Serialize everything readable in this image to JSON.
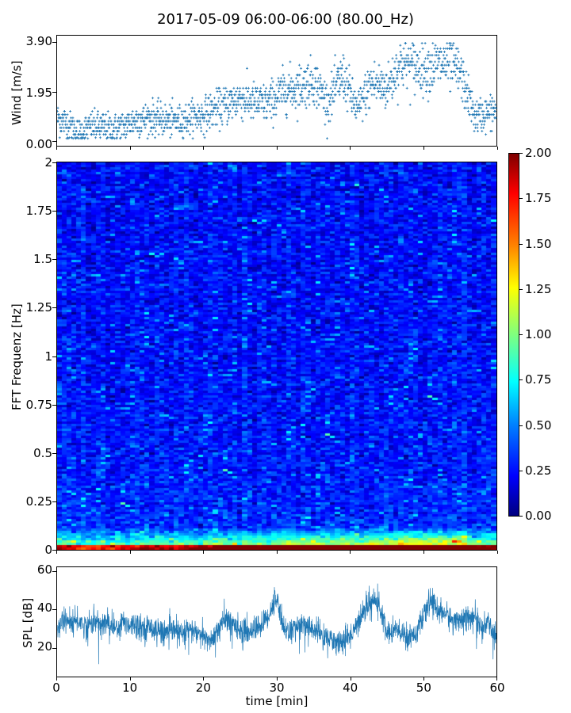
{
  "title": "2017-05-09 06:00-06:00 (80.00_Hz)",
  "chart_data": [
    {
      "type": "scatter",
      "panel": "wind",
      "ylabel": "Wind [m/s]",
      "yticks": [
        "0.00",
        "1.95",
        "3.90"
      ],
      "ylim": [
        0,
        3.9
      ],
      "xlim": [
        0,
        60
      ],
      "color": "#1f77b4",
      "trend": {
        "x": [
          0,
          2,
          3,
          5,
          7,
          9,
          11,
          13,
          15,
          17,
          19,
          20,
          21,
          23,
          25,
          27,
          29,
          31,
          33,
          35,
          37,
          39,
          41,
          43,
          45,
          47,
          49,
          51,
          53,
          55,
          57,
          58,
          60
        ],
        "y": [
          0.9,
          0.55,
          0.35,
          0.6,
          0.5,
          0.55,
          0.85,
          0.9,
          0.8,
          0.8,
          1.0,
          1.0,
          1.2,
          1.4,
          1.7,
          1.5,
          1.5,
          2.0,
          2.1,
          2.4,
          1.5,
          2.6,
          1.2,
          2.3,
          2.1,
          3.1,
          2.9,
          2.9,
          3.1,
          2.7,
          1.0,
          1.0,
          1.2
        ]
      }
    },
    {
      "type": "heatmap",
      "panel": "spectrogram",
      "ylabel": "FFT Frequenz [Hz]",
      "yticks": [
        "0",
        "0.25",
        "0.5",
        "0.75",
        "1",
        "1.25",
        "1.5",
        "1.75",
        "2"
      ],
      "ylim": [
        0,
        2
      ],
      "xlim": [
        0,
        60
      ],
      "colormap": "jet",
      "clim": [
        0,
        2
      ],
      "colorbar_ticks": [
        "0.00",
        "0.25",
        "0.50",
        "0.75",
        "1.00",
        "1.25",
        "1.50",
        "1.75",
        "2.00"
      ]
    },
    {
      "type": "line",
      "panel": "spl",
      "ylabel": "SPL [dB]",
      "xlabel": "time [min]",
      "yticks": [
        "20",
        "40",
        "60"
      ],
      "xticks": [
        "0",
        "10",
        "20",
        "30",
        "40",
        "50",
        "60"
      ],
      "ylim": [
        5,
        62
      ],
      "xlim": [
        0,
        60
      ],
      "color": "#1f77b4",
      "series": [
        {
          "x": [
            0,
            1,
            2,
            3,
            4,
            5,
            6,
            7,
            8,
            9,
            10,
            11,
            12,
            13,
            14,
            15,
            16,
            17,
            18,
            19,
            20,
            21,
            22,
            23,
            24,
            25,
            26,
            27,
            28,
            29,
            30,
            31,
            32,
            33,
            34,
            35,
            36,
            37,
            38,
            39,
            40,
            41,
            42,
            43,
            44,
            45,
            46,
            47,
            48,
            49,
            50,
            51,
            52,
            53,
            54,
            55,
            56,
            57,
            58,
            59,
            60
          ],
          "y": [
            30,
            35,
            33,
            34,
            31,
            34,
            32,
            33,
            30,
            34,
            32,
            33,
            30,
            31,
            29,
            28,
            29,
            27,
            30,
            28,
            25,
            24,
            30,
            35,
            33,
            30,
            28,
            30,
            32,
            38,
            46,
            30,
            28,
            33,
            31,
            30,
            27,
            25,
            24,
            23,
            26,
            33,
            40,
            46,
            42,
            28,
            30,
            27,
            26,
            28,
            35,
            45,
            40,
            38,
            34,
            36,
            35,
            37,
            30,
            33,
            25
          ]
        }
      ]
    }
  ]
}
